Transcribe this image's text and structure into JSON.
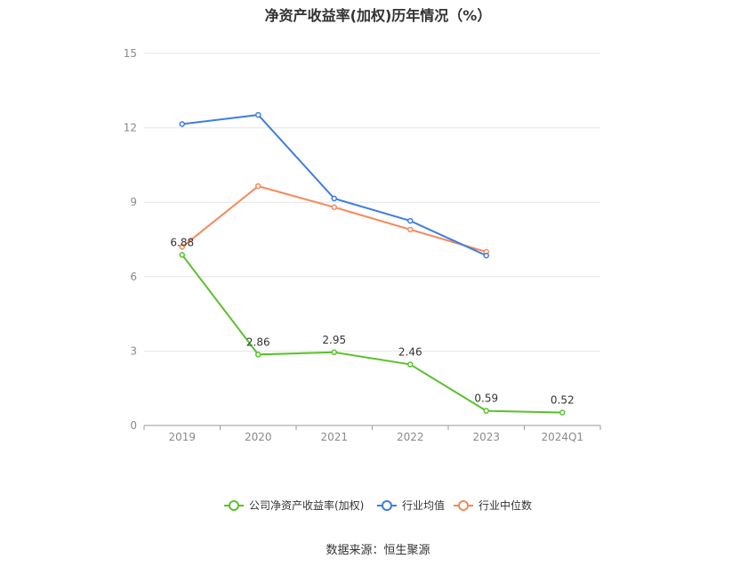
{
  "chart_data": {
    "type": "line",
    "title": "净资产收益率(加权)历年情况（%）",
    "categories": [
      "2019",
      "2020",
      "2021",
      "2022",
      "2023",
      "2024Q1"
    ],
    "ylim": [
      0,
      15
    ],
    "yticks": [
      0,
      3,
      6,
      9,
      12,
      15
    ],
    "grid": true,
    "legend_position": "bottom",
    "series": [
      {
        "name": "公司净资产收益率(加权)",
        "color": "#5ac12b",
        "values": [
          6.88,
          2.86,
          2.95,
          2.46,
          0.59,
          0.52
        ],
        "labels": [
          "6.88",
          "2.86",
          "2.95",
          "2.46",
          "0.59",
          "0.52"
        ]
      },
      {
        "name": "行业均值",
        "color": "#3f7de0",
        "values": [
          12.15,
          12.52,
          9.15,
          8.25,
          6.85,
          null
        ]
      },
      {
        "name": "行业中位数",
        "color": "#f5895a",
        "values": [
          7.2,
          9.65,
          8.8,
          7.9,
          7.0,
          null
        ]
      }
    ]
  },
  "source": "数据来源：恒生聚源"
}
